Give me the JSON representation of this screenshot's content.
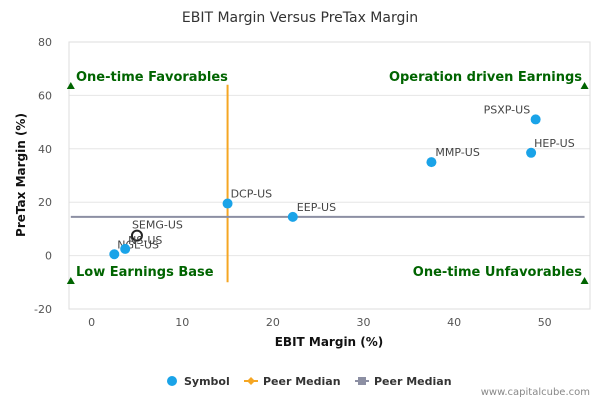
{
  "chart_data": {
    "type": "scatter",
    "title": "EBIT Margin Versus PreTax Margin",
    "xlabel": "EBIT Margin (%)",
    "ylabel": "PreTax Margin (%)",
    "xlim": [
      -2.5,
      55
    ],
    "ylim": [
      -20,
      80
    ],
    "xticks": [
      0,
      10,
      20,
      30,
      40,
      50
    ],
    "yticks": [
      -20,
      0,
      20,
      40,
      60,
      80
    ],
    "grid": "horizontal",
    "points": [
      {
        "label": "PSXP-US",
        "x": 49.0,
        "y": 51.0
      },
      {
        "label": "HEP-US",
        "x": 48.5,
        "y": 38.5
      },
      {
        "label": "MMP-US",
        "x": 37.5,
        "y": 35.0
      },
      {
        "label": "DCP-US",
        "x": 15.0,
        "y": 19.5
      },
      {
        "label": "EEP-US",
        "x": 22.2,
        "y": 14.5
      },
      {
        "label": "SEMG-US",
        "x": 5.0,
        "y": 7.5,
        "highlight": true
      },
      {
        "label": "NGL-US",
        "x": 2.5,
        "y": 0.5
      },
      {
        "label": "NS-US",
        "x": 3.7,
        "y": 2.5
      }
    ],
    "peer_median_x": 15.0,
    "peer_median_y": 14.5,
    "quadrants": {
      "top_left": "One-time Favorables",
      "top_right": "Operation driven Earnings",
      "bottom_left": "Low Earnings Base",
      "bottom_right": "One-time Unfavorables"
    },
    "legend": [
      {
        "label": "Symbol",
        "kind": "dot",
        "color": "#1aa3e8"
      },
      {
        "label": "Peer Median",
        "kind": "diamond-line",
        "color": "#f5a623"
      },
      {
        "label": "Peer Median",
        "kind": "square-line",
        "color": "#8c8fa3"
      }
    ],
    "legend_position": "bottom-center",
    "colors": {
      "point": "#1aa3e8",
      "highlight_ring": "#222222",
      "vline": "#f5a623",
      "hline": "#8c8fa3",
      "quadrant_text": "#006400",
      "marker": "#006400",
      "grid": "#e6e6e6"
    }
  },
  "credit": "www.capitalcube.com"
}
